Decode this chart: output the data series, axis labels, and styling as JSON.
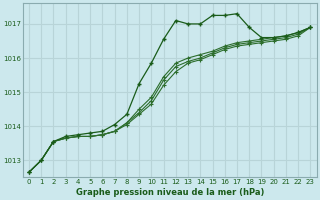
{
  "bg_color": "#cce8ed",
  "grid_color": "#b8d4d8",
  "line_color_dark": "#1a5c1a",
  "line_color_mid": "#2d6e2d",
  "xlabel": "Graphe pression niveau de la mer (hPa)",
  "xlim": [
    -0.5,
    23.5
  ],
  "ylim": [
    1012.5,
    1017.6
  ],
  "yticks": [
    1013,
    1014,
    1015,
    1016,
    1017
  ],
  "xticks": [
    0,
    1,
    2,
    3,
    4,
    5,
    6,
    7,
    8,
    9,
    10,
    11,
    12,
    13,
    14,
    15,
    16,
    17,
    18,
    19,
    20,
    21,
    22,
    23
  ],
  "series": [
    [
      1012.65,
      1013.0,
      1013.55,
      1013.7,
      1013.75,
      1013.8,
      1013.85,
      1014.05,
      1014.35,
      1015.25,
      1015.85,
      1016.55,
      1017.1,
      1017.0,
      1017.0,
      1017.25,
      1017.25,
      1017.3,
      1016.9,
      1016.6,
      1016.6,
      1016.65,
      1016.75,
      1016.9
    ],
    [
      1012.65,
      1013.0,
      1013.55,
      1013.65,
      1013.7,
      1013.7,
      1013.75,
      1013.85,
      1014.1,
      1014.5,
      1014.85,
      1015.45,
      1015.85,
      1016.0,
      1016.1,
      1016.2,
      1016.35,
      1016.45,
      1016.5,
      1016.55,
      1016.6,
      1016.65,
      1016.75,
      1016.9
    ],
    [
      1012.65,
      1013.0,
      1013.55,
      1013.65,
      1013.7,
      1013.7,
      1013.75,
      1013.85,
      1014.1,
      1014.4,
      1014.75,
      1015.35,
      1015.75,
      1015.9,
      1016.0,
      1016.15,
      1016.3,
      1016.4,
      1016.45,
      1016.5,
      1016.55,
      1016.6,
      1016.7,
      1016.9
    ],
    [
      1012.65,
      1013.0,
      1013.55,
      1013.65,
      1013.7,
      1013.7,
      1013.75,
      1013.85,
      1014.05,
      1014.35,
      1014.65,
      1015.2,
      1015.6,
      1015.85,
      1015.95,
      1016.1,
      1016.25,
      1016.35,
      1016.4,
      1016.45,
      1016.5,
      1016.55,
      1016.65,
      1016.9
    ]
  ]
}
